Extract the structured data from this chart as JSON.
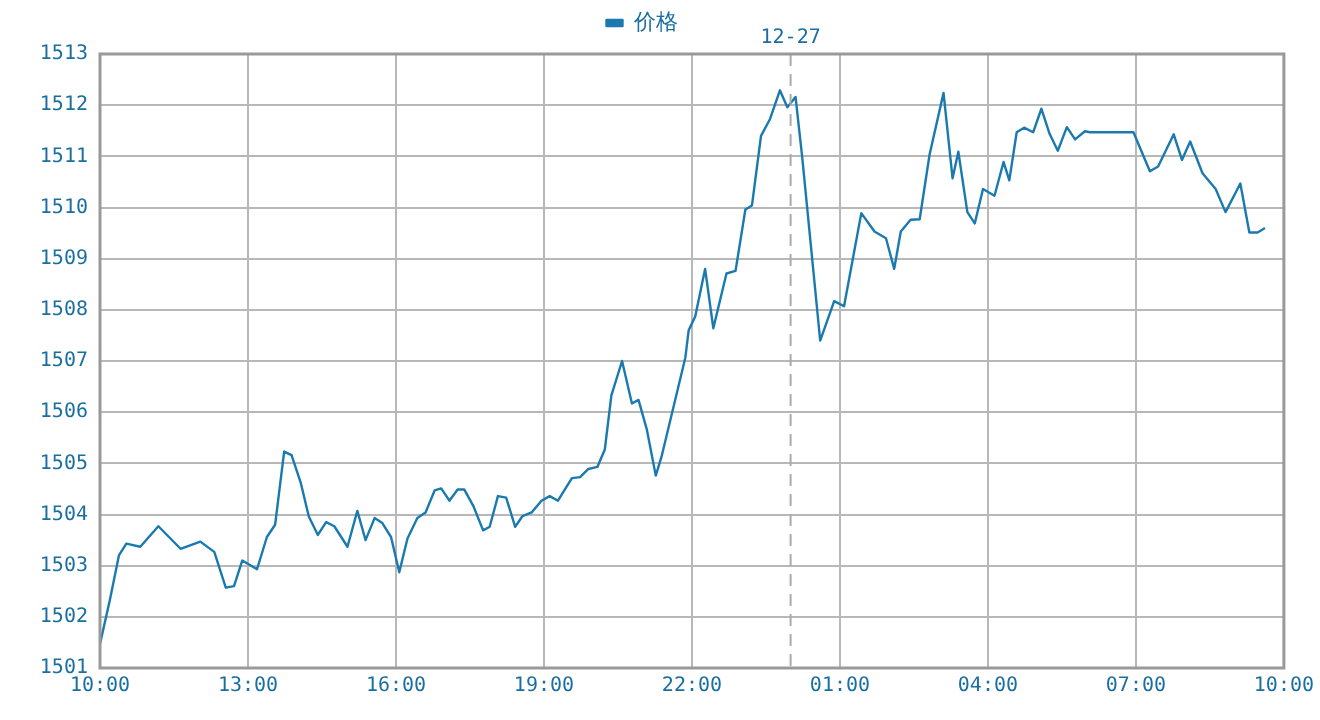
{
  "chart_data": {
    "type": "line",
    "xlim": [
      "--12-26T10:00",
      "--12-27T10:00"
    ],
    "xticks": [
      {
        "value": "--12-26T10:00",
        "label": "10:00"
      },
      {
        "value": "--12-26T13:00",
        "label": "13:00"
      },
      {
        "value": "--12-26T16:00",
        "label": "16:00"
      },
      {
        "value": "--12-26T19:00",
        "label": "19:00"
      },
      {
        "value": "--12-26T22:00",
        "label": "22:00"
      },
      {
        "value": "--12-27T01:00",
        "label": "01:00"
      },
      {
        "value": "--12-27T04:00",
        "label": "04:00"
      },
      {
        "value": "--12-27T07:00",
        "label": "07:00"
      },
      {
        "value": "--12-27T10:00",
        "label": "10:00"
      }
    ],
    "ylim": [
      1501,
      1513
    ],
    "yticks": [
      1501,
      1502,
      1503,
      1504,
      1505,
      1506,
      1507,
      1508,
      1509,
      1510,
      1511,
      1512,
      1513
    ],
    "grid": true,
    "legend": "top",
    "marker": "none",
    "line_style": "solid",
    "ref_lines": [
      {
        "axis": "x",
        "value": "--12-27",
        "label": "12-27",
        "color": "#aaaaaa",
        "line_style": "dashed"
      }
    ],
    "series": [
      {
        "name": "价格",
        "color": "#1a7ab0",
        "x": [
          "--12-26T10:00",
          "--12-26T10:12",
          "--12-26T10:23",
          "--12-26T10:32",
          "--12-26T10:49",
          "--12-26T11:11",
          "--12-26T11:38",
          "--12-26T12:02",
          "--12-26T12:19",
          "--12-26T12:33",
          "--12-26T12:43",
          "--12-26T12:53",
          "--12-26T13:11",
          "--12-26T13:23",
          "--12-26T13:33",
          "--12-26T13:44",
          "--12-26T13:53",
          "--12-26T14:04",
          "--12-26T14:14",
          "--12-26T14:25",
          "--12-26T14:35",
          "--12-26T14:45",
          "--12-26T15:01",
          "--12-26T15:13",
          "--12-26T15:23",
          "--12-26T15:34",
          "--12-26T15:43",
          "--12-26T15:54",
          "--12-26T16:04",
          "--12-26T16:14",
          "--12-26T16:26",
          "--12-26T16:36",
          "--12-26T16:47",
          "--12-26T16:55",
          "--12-26T17:05",
          "--12-26T17:15",
          "--12-26T17:23",
          "--12-26T17:34",
          "--12-26T17:46",
          "--12-26T17:54",
          "--12-26T18:04",
          "--12-26T18:14",
          "--12-26T18:25",
          "--12-26T18:34",
          "--12-26T18:45",
          "--12-26T18:57",
          "--12-26T19:07",
          "--12-26T19:17",
          "--12-26T19:34",
          "--12-26T19:44",
          "--12-26T19:54",
          "--12-26T20:05",
          "--12-26T20:14",
          "--12-26T20:22",
          "--12-26T20:35",
          "--12-26T20:47",
          "--12-26T20:55",
          "--12-26T21:05",
          "--12-26T21:16",
          "--12-26T21:23",
          "--12-26T21:52",
          "--12-26T21:56",
          "--12-26T22:04",
          "--12-26T22:16",
          "--12-26T22:26",
          "--12-26T22:42",
          "--12-26T22:53",
          "--12-26T23:05",
          "--12-26T23:13",
          "--12-26T23:24",
          "--12-26T23:35",
          "--12-26T23:47",
          "--12-26T23:56",
          "--12-27T00:06",
          "--12-27T00:14",
          "--12-27T00:36",
          "--12-27T00:53",
          "--12-27T01:05",
          "--12-27T01:26",
          "--12-27T01:42",
          "--12-27T01:56",
          "--12-27T02:06",
          "--12-27T02:14",
          "--12-27T02:26",
          "--12-27T02:37",
          "--12-27T02:49",
          "--12-27T03:06",
          "--12-27T03:17",
          "--12-27T03:24",
          "--12-27T03:35",
          "--12-27T03:44",
          "--12-27T03:54",
          "--12-27T04:08",
          "--12-27T04:19",
          "--12-27T04:26",
          "--12-27T04:35",
          "--12-27T04:44",
          "--12-27T04:55",
          "--12-27T05:05",
          "--12-27T05:15",
          "--12-27T05:25",
          "--12-27T05:36",
          "--12-27T05:46",
          "--12-27T05:58",
          "--12-27T06:04",
          "--12-27T06:57",
          "--12-27T07:17",
          "--12-27T07:27",
          "--12-27T07:46",
          "--12-27T07:56",
          "--12-27T08:06",
          "--12-27T08:21",
          "--12-27T08:37",
          "--12-27T08:49",
          "--12-27T09:07",
          "--12-27T09:18",
          "--12-27T09:28",
          "--12-27T09:37"
        ],
        "values": [
          1501.47,
          1502.33,
          1503.2,
          1503.43,
          1503.37,
          1503.77,
          1503.33,
          1503.47,
          1503.27,
          1502.57,
          1502.6,
          1503.1,
          1502.93,
          1503.56,
          1503.8,
          1505.23,
          1505.16,
          1504.63,
          1503.96,
          1503.6,
          1503.85,
          1503.77,
          1503.37,
          1504.07,
          1503.5,
          1503.93,
          1503.84,
          1503.56,
          1502.87,
          1503.53,
          1503.93,
          1504.04,
          1504.47,
          1504.51,
          1504.27,
          1504.49,
          1504.49,
          1504.17,
          1503.69,
          1503.76,
          1504.36,
          1504.33,
          1503.76,
          1503.97,
          1504.04,
          1504.27,
          1504.36,
          1504.27,
          1504.71,
          1504.73,
          1504.89,
          1504.93,
          1505.27,
          1506.33,
          1507.0,
          1506.17,
          1506.24,
          1505.67,
          1504.76,
          1505.13,
          1507.07,
          1507.6,
          1507.87,
          1508.8,
          1507.64,
          1508.71,
          1508.76,
          1509.96,
          1510.04,
          1511.4,
          1511.73,
          1512.29,
          1511.96,
          1512.16,
          1511.0,
          1507.4,
          1508.17,
          1508.07,
          1509.89,
          1509.53,
          1509.4,
          1508.8,
          1509.53,
          1509.76,
          1509.77,
          1511.03,
          1512.24,
          1510.57,
          1511.09,
          1509.91,
          1509.69,
          1510.36,
          1510.23,
          1510.89,
          1510.53,
          1511.47,
          1511.56,
          1511.47,
          1511.93,
          1511.44,
          1511.11,
          1511.57,
          1511.33,
          1511.49,
          1511.47,
          1511.47,
          1510.71,
          1510.8,
          1511.43,
          1510.93,
          1511.29,
          1510.67,
          1510.36,
          1509.91,
          1510.47,
          1509.51,
          1509.51,
          1509.6
        ]
      }
    ]
  }
}
